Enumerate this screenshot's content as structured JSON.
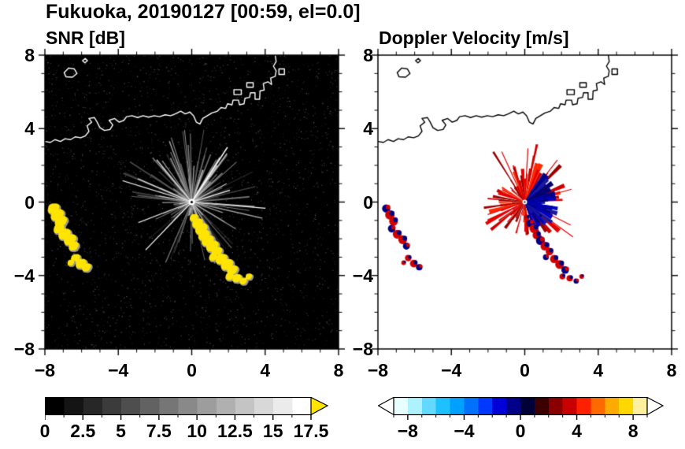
{
  "title": "Fukuoka, 20190127 [00:59, el=0.0]",
  "panels": {
    "left": {
      "title": "SNR [dB]"
    },
    "right": {
      "title": "Doppler Velocity [m/s]"
    }
  },
  "axes": {
    "xlim": [
      -8,
      8
    ],
    "ylim": [
      -8,
      8
    ],
    "tick_values": [
      -8,
      -4,
      0,
      4,
      8
    ],
    "tick_labels": [
      "−8",
      "−4",
      "0",
      "4",
      "8"
    ],
    "minor_step": 1
  },
  "colors": {
    "snr_echo": "#ffe400",
    "doppler_pos": "#d40000",
    "doppler_neg": "#000080",
    "coast_left": "#ffffff",
    "coast_right": "#000000",
    "frame": "#000000"
  },
  "colorbars": {
    "snr": {
      "min": 0,
      "max": 17.5,
      "tick_step": 2.5,
      "minor_step": 1.25,
      "labels": [
        "0",
        "2.5",
        "5",
        "7.5",
        "10",
        "12.5",
        "15",
        "17.5"
      ],
      "label_values": [
        0,
        2.5,
        5,
        7.5,
        10,
        12.5,
        15,
        17.5
      ],
      "stops": [
        "#000000",
        "#141414",
        "#272727",
        "#3b3b3b",
        "#4e4e4e",
        "#626262",
        "#767676",
        "#898989",
        "#9d9d9d",
        "#b0b0b0",
        "#c4c4c4",
        "#d8d8d8",
        "#ebebeb",
        "#ffffff"
      ],
      "over_arrow_color": "#ffe400"
    },
    "doppler": {
      "min": -9,
      "max": 9,
      "tick_step": 4,
      "minor_step": 1,
      "labels": [
        "−8",
        "−4",
        "0",
        "4",
        "8"
      ],
      "label_values": [
        -8,
        -4,
        0,
        4,
        8
      ],
      "stops": [
        "#e8ffff",
        "#aef2ff",
        "#63d9ff",
        "#1fc0ff",
        "#00a0ff",
        "#0070ff",
        "#0038ff",
        "#0000d8",
        "#000088",
        "#000038",
        "#3c0000",
        "#8a0000",
        "#c80000",
        "#ff2000",
        "#ff6a00",
        "#ffaa00",
        "#ffd800",
        "#fff0a0"
      ],
      "under_arrow_color": "#ffffff",
      "over_arrow_color": "#ffffff"
    }
  },
  "chart_data": {
    "type": "heatmap",
    "title": "Fukuoka, 20190127 [00:59, el=0.0]",
    "subtitle_left": "SNR [dB]",
    "subtitle_right": "Doppler Velocity [m/s]",
    "x_range_km": [
      -8,
      8
    ],
    "y_range_km": [
      -8,
      8
    ],
    "radar_center_km": [
      0,
      0
    ],
    "panels": [
      {
        "variable": "SNR",
        "units": "dB",
        "colormap": "grayscale 0-17.5 dB, yellow over-range",
        "background": "#000000",
        "coast_color": "#ffffff"
      },
      {
        "variable": "Doppler Velocity",
        "units": "m/s",
        "colormap": "cyan-blue-black-red-yellow, -9 to 9 m/s",
        "background": "#ffffff",
        "coast_color": "#000000"
      }
    ],
    "coastline": [
      [
        -8.0,
        3.3
      ],
      [
        -7.7,
        3.25
      ],
      [
        -7.45,
        3.4
      ],
      [
        -7.15,
        3.3
      ],
      [
        -6.9,
        3.45
      ],
      [
        -6.6,
        3.4
      ],
      [
        -6.35,
        3.55
      ],
      [
        -6.05,
        3.5
      ],
      [
        -5.8,
        3.6
      ],
      [
        -5.6,
        3.85
      ],
      [
        -5.7,
        4.15
      ],
      [
        -5.45,
        4.35
      ],
      [
        -5.6,
        4.55
      ],
      [
        -5.3,
        4.6
      ],
      [
        -5.15,
        4.35
      ],
      [
        -5.0,
        4.05
      ],
      [
        -4.75,
        3.9
      ],
      [
        -4.45,
        3.95
      ],
      [
        -4.3,
        4.2
      ],
      [
        -4.5,
        4.45
      ],
      [
        -4.2,
        4.55
      ],
      [
        -3.95,
        4.35
      ],
      [
        -3.7,
        4.45
      ],
      [
        -3.55,
        4.65
      ],
      [
        -3.25,
        4.7
      ],
      [
        -2.95,
        4.6
      ],
      [
        -2.65,
        4.7
      ],
      [
        -2.35,
        4.62
      ],
      [
        -2.05,
        4.7
      ],
      [
        -1.75,
        4.65
      ],
      [
        -1.45,
        4.75
      ],
      [
        -1.15,
        4.7
      ],
      [
        -0.9,
        4.8
      ],
      [
        -0.6,
        4.95
      ],
      [
        -0.35,
        4.8
      ],
      [
        -0.1,
        4.9
      ],
      [
        0.1,
        4.7
      ],
      [
        0.25,
        4.35
      ],
      [
        0.45,
        4.25
      ],
      [
        0.6,
        4.55
      ],
      [
        0.85,
        4.7
      ],
      [
        1.1,
        4.85
      ],
      [
        1.4,
        4.95
      ],
      [
        1.6,
        5.15
      ],
      [
        1.85,
        5.1
      ],
      [
        1.95,
        5.35
      ],
      [
        2.2,
        5.3
      ],
      [
        2.25,
        5.55
      ],
      [
        2.55,
        5.55
      ],
      [
        2.6,
        5.3
      ],
      [
        2.85,
        5.35
      ],
      [
        2.9,
        5.65
      ],
      [
        3.15,
        5.7
      ],
      [
        3.2,
        5.95
      ],
      [
        3.45,
        5.95
      ],
      [
        3.45,
        5.6
      ],
      [
        3.7,
        5.6
      ],
      [
        3.72,
        6.05
      ],
      [
        3.95,
        6.1
      ],
      [
        3.9,
        6.45
      ],
      [
        4.15,
        6.55
      ],
      [
        4.35,
        6.4
      ],
      [
        4.3,
        6.75
      ],
      [
        4.55,
        6.85
      ],
      [
        4.6,
        7.15
      ],
      [
        4.45,
        7.4
      ],
      [
        4.6,
        7.65
      ],
      [
        4.55,
        8.0
      ]
    ],
    "islands": [
      [
        [
          -6.95,
          7.05
        ],
        [
          -6.7,
          7.3
        ],
        [
          -6.4,
          7.25
        ],
        [
          -6.25,
          7.0
        ],
        [
          -6.5,
          6.8
        ],
        [
          -6.85,
          6.82
        ]
      ],
      [
        [
          -5.95,
          7.7
        ],
        [
          -5.8,
          7.82
        ],
        [
          -5.68,
          7.7
        ],
        [
          -5.82,
          7.58
        ]
      ]
    ],
    "piers": [
      [
        [
          2.3,
          5.85
        ],
        [
          2.7,
          5.85
        ],
        [
          2.7,
          6.12
        ],
        [
          2.3,
          6.12
        ]
      ],
      [
        [
          3.0,
          6.25
        ],
        [
          3.35,
          6.25
        ],
        [
          3.35,
          6.5
        ],
        [
          3.0,
          6.5
        ]
      ],
      [
        [
          4.75,
          6.95
        ],
        [
          5.05,
          6.95
        ],
        [
          5.05,
          7.25
        ],
        [
          4.75,
          7.25
        ]
      ]
    ],
    "echo_blobs": [
      [
        -7.55,
        -0.35,
        0.28
      ],
      [
        -7.35,
        -0.7,
        0.32
      ],
      [
        -7.15,
        -1.05,
        0.3
      ],
      [
        -7.25,
        -1.45,
        0.26
      ],
      [
        -6.95,
        -1.75,
        0.3
      ],
      [
        -6.65,
        -2.05,
        0.3
      ],
      [
        -6.45,
        -2.4,
        0.24
      ],
      [
        -6.35,
        -3.05,
        0.22
      ],
      [
        -6.05,
        -3.35,
        0.26
      ],
      [
        -5.75,
        -3.55,
        0.22
      ],
      [
        -6.6,
        -3.3,
        0.16
      ],
      [
        0.1,
        -0.85,
        0.2
      ],
      [
        0.3,
        -1.15,
        0.26
      ],
      [
        0.5,
        -1.45,
        0.3
      ],
      [
        0.65,
        -1.8,
        0.28
      ],
      [
        0.85,
        -2.1,
        0.3
      ],
      [
        1.1,
        -2.4,
        0.3
      ],
      [
        1.35,
        -2.7,
        0.26
      ],
      [
        1.15,
        -3.0,
        0.2
      ],
      [
        1.6,
        -3.1,
        0.28
      ],
      [
        1.9,
        -3.4,
        0.3
      ],
      [
        2.2,
        -3.7,
        0.26
      ],
      [
        2.05,
        -4.05,
        0.2
      ],
      [
        2.45,
        -4.15,
        0.22
      ],
      [
        2.8,
        -4.3,
        0.18
      ],
      [
        3.1,
        -4.05,
        0.16
      ]
    ],
    "snr_spokes": {
      "count": 210,
      "max_length": 3.8,
      "seed": 7
    },
    "doppler": {
      "blue_sector_deg": [
        -72,
        58
      ],
      "red_count": 170,
      "blue_count": 150,
      "seed": 99
    }
  }
}
